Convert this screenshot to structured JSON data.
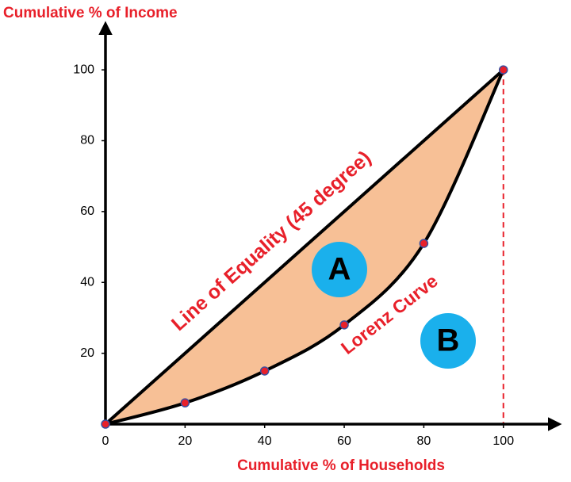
{
  "chart_data": {
    "type": "line",
    "y_axis_label": "Cumulative % of Income",
    "x_axis_label": "Cumulative % of Households",
    "x": [
      0,
      20,
      40,
      60,
      80,
      100
    ],
    "series": [
      {
        "name": "Line of Equality (45 degree)",
        "color": "#000000",
        "values": [
          0,
          20,
          40,
          60,
          80,
          100
        ]
      },
      {
        "name": "Lorenz Curve",
        "color": "#000000",
        "values": [
          0,
          6,
          15,
          28,
          51,
          100
        ]
      }
    ],
    "area_color": "#f7c096",
    "marker_color": "#e8202a",
    "label_color": "#e8202a",
    "regions": [
      {
        "label": "A",
        "color": "#1ab0ec"
      },
      {
        "label": "B",
        "color": "#1ab0ec"
      }
    ],
    "xlim": [
      0,
      114
    ],
    "ylim": [
      0,
      113
    ],
    "xticks": [
      0,
      20,
      40,
      60,
      80,
      100
    ],
    "yticks": [
      20,
      40,
      60,
      80,
      100
    ]
  }
}
